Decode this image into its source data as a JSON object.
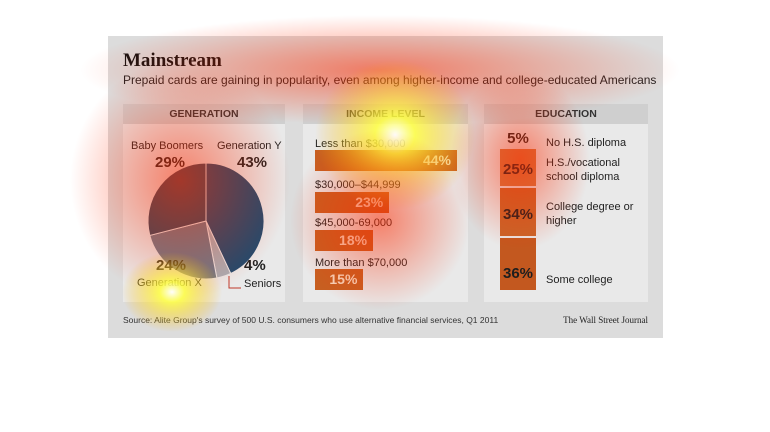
{
  "title": "Mainstream",
  "subtitle": "Prepaid cards are gaining in popularity, even among higher-income and college-educated Americans",
  "footer": {
    "source": "Source: Alite Group's survey of 500 U.S. consumers who use alternative financial services, Q1 2011",
    "publisher": "The Wall Street Journal"
  },
  "colors": {
    "background": "#dcdcdc",
    "pie_generation_y": "#1f4a6e",
    "pie_generation_x": "#6c7a8a",
    "pie_seniors": "#a8aeb5",
    "pie_baby_boomers": "#34495e",
    "bars": "#c75f21"
  },
  "chart_data": [
    {
      "type": "pie",
      "title": "GENERATION",
      "slices": [
        {
          "label": "Generation Y",
          "value": 43,
          "display": "43%"
        },
        {
          "label": "Seniors",
          "value": 4,
          "display": "4%"
        },
        {
          "label": "Generation X",
          "value": 24,
          "display": "24%"
        },
        {
          "label": "Baby Boomers",
          "value": 29,
          "display": "29%"
        }
      ]
    },
    {
      "type": "bar",
      "title": "INCOME LEVEL",
      "categories": [
        "Less than $30,000",
        "$30,000–$44,999",
        "$45,000-69,000",
        "More than $70,000"
      ],
      "values": [
        44,
        23,
        18,
        15
      ],
      "display": [
        "44%",
        "23%",
        "18%",
        "15%"
      ]
    },
    {
      "type": "bar",
      "title": "EDUCATION",
      "categories": [
        "No H.S. diploma",
        "H.S./vocational school diploma",
        "College degree or higher",
        "Some college"
      ],
      "values": [
        5,
        25,
        34,
        36
      ],
      "display": [
        "5%",
        "25%",
        "34%",
        "36%"
      ]
    }
  ]
}
